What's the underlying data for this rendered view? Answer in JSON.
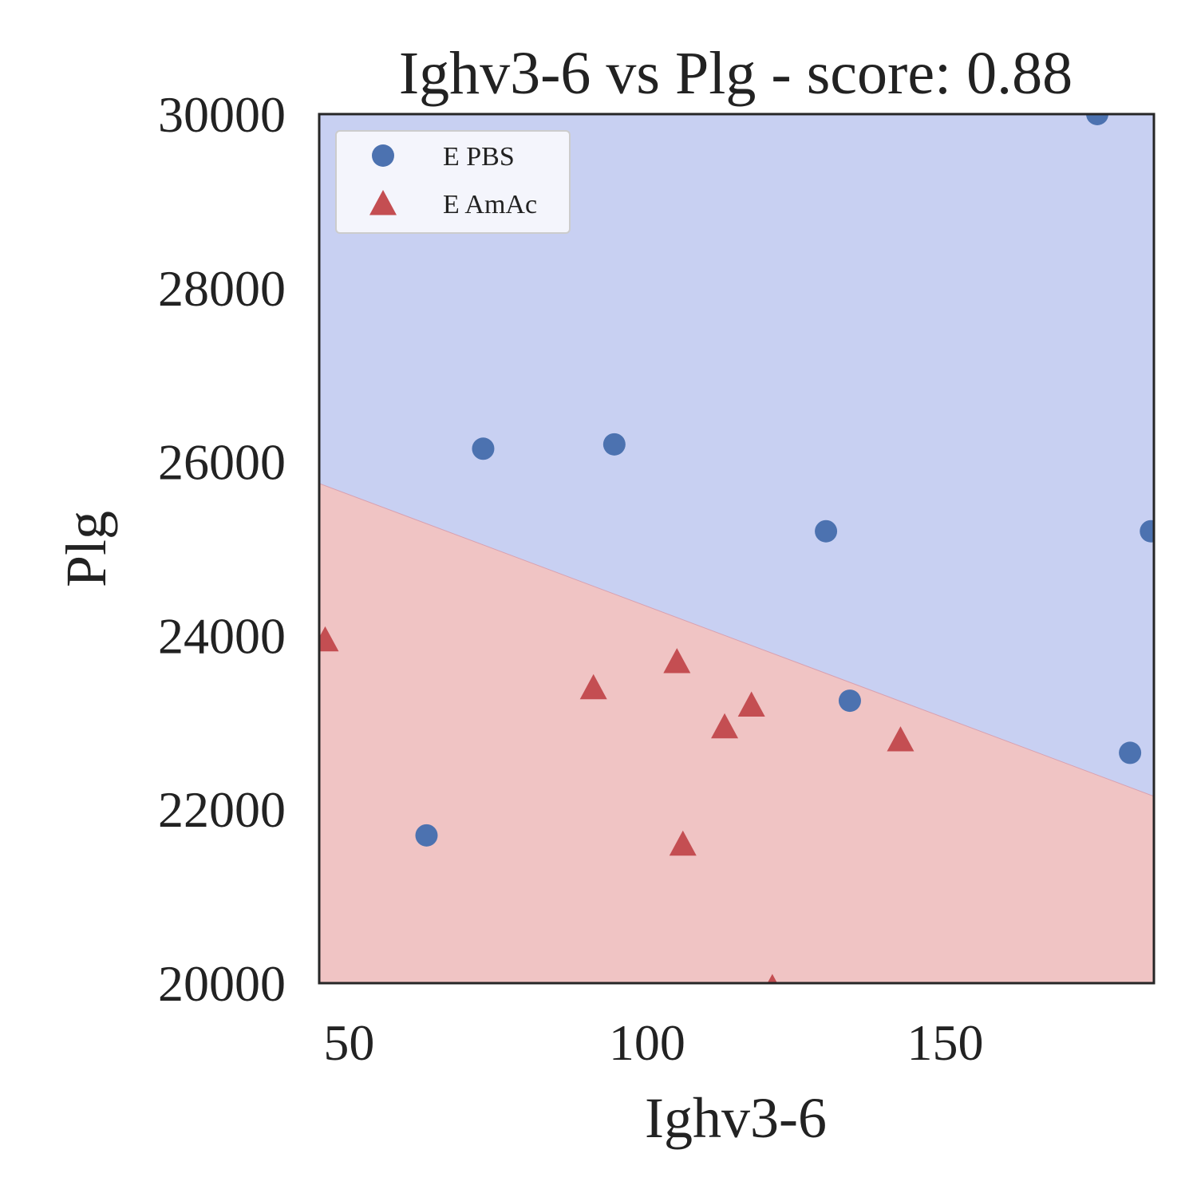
{
  "chart_data": {
    "type": "scatter",
    "title": "Ighv3-6 vs Plg - score: 0.88",
    "xlabel": "Ighv3-6",
    "ylabel": "Plg",
    "xlim": [
      45,
      185
    ],
    "ylim": [
      20000,
      30000
    ],
    "xticks": [
      50,
      100,
      150
    ],
    "yticks": [
      20000,
      22000,
      24000,
      26000,
      28000,
      30000
    ],
    "grid": false,
    "legend_position": "top-left",
    "decision_boundary": {
      "x": [
        45,
        185
      ],
      "y": [
        25750,
        22150
      ],
      "above_region_color": "#c8d0f2",
      "below_region_color": "#f0c4c4"
    },
    "series": [
      {
        "name": "E PBS",
        "marker": "circle",
        "color": "#4c72b0",
        "points": [
          {
            "x": 63,
            "y": 21700
          },
          {
            "x": 72.5,
            "y": 26150
          },
          {
            "x": 94.5,
            "y": 26200
          },
          {
            "x": 130,
            "y": 25200
          },
          {
            "x": 134,
            "y": 23250
          },
          {
            "x": 175.5,
            "y": 30000
          },
          {
            "x": 181,
            "y": 22650
          },
          {
            "x": 184.5,
            "y": 25200
          }
        ]
      },
      {
        "name": "E AmAc",
        "marker": "triangle",
        "color": "#c44e52",
        "points": [
          {
            "x": 46,
            "y": 23950
          },
          {
            "x": 91,
            "y": 23400
          },
          {
            "x": 105,
            "y": 23700
          },
          {
            "x": 106,
            "y": 21600
          },
          {
            "x": 113,
            "y": 22950
          },
          {
            "x": 117.5,
            "y": 23200
          },
          {
            "x": 142.5,
            "y": 22800
          },
          {
            "x": 121,
            "y": 19950
          }
        ]
      }
    ]
  }
}
